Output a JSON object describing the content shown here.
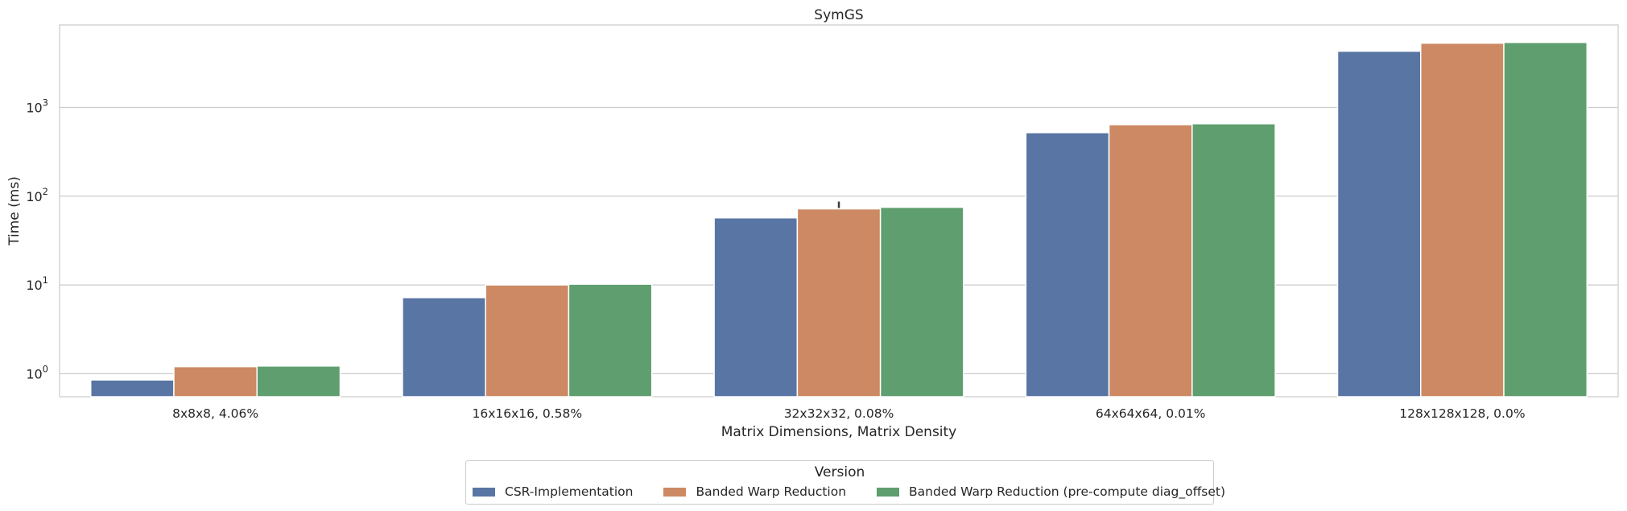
{
  "chart_data": {
    "type": "bar",
    "title": "SymGS",
    "xlabel": "Matrix Dimensions, Matrix Density",
    "ylabel": "Time (ms)",
    "yscale": "log",
    "ylim": [
      0.55,
      8500
    ],
    "yticks": [
      1,
      10,
      100,
      1000
    ],
    "ytick_labels": [
      "10^0",
      "10^1",
      "10^2",
      "10^3"
    ],
    "grid": "horizontal",
    "legend_position": "bottom-center",
    "categories": [
      "8x8x8, 4.06%",
      "16x16x16, 0.58%",
      "32x32x32, 0.08%",
      "64x64x64, 0.01%",
      "128x128x128, 0.0%"
    ],
    "series": [
      {
        "name": "CSR-Implementation",
        "color": "#5875a4",
        "values": [
          0.85,
          7.2,
          57,
          520,
          4300
        ]
      },
      {
        "name": "Banded Warp Reduction",
        "color": "#cc8963",
        "values": [
          1.2,
          10.0,
          72,
          640,
          5300
        ]
      },
      {
        "name": "Banded Warp Reduction (pre-compute diag_offset)",
        "color": "#5f9e6e",
        "values": [
          1.22,
          10.2,
          75,
          655,
          5400
        ]
      }
    ]
  },
  "legend": {
    "title": "Version",
    "items": [
      "CSR-Implementation",
      "Banded Warp Reduction",
      "Banded Warp Reduction (pre-compute diag_offset)"
    ]
  }
}
